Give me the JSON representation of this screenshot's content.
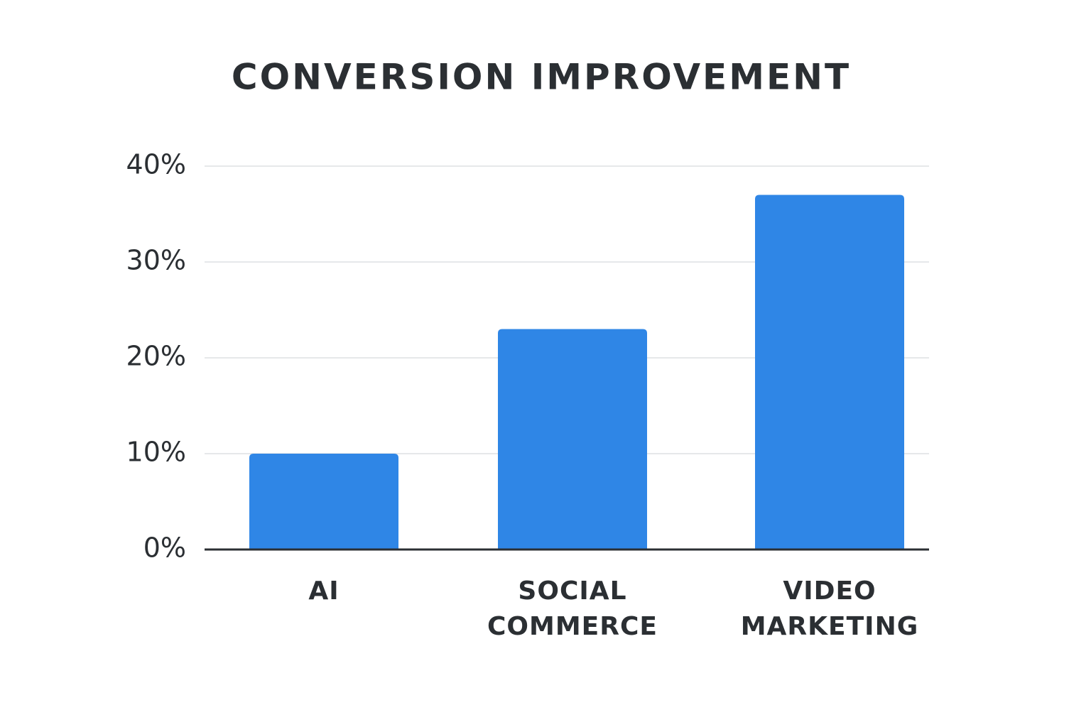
{
  "chart_data": {
    "type": "bar",
    "title": "CONVERSION IMPROVEMENT",
    "categories": [
      "AI",
      "SOCIAL COMMERCE",
      "VIDEO MARKETING"
    ],
    "values": [
      10,
      23,
      37
    ],
    "color": "#2f86e6",
    "ylim": [
      0,
      40
    ],
    "yticks": [
      {
        "value": 0,
        "label": "0%"
      },
      {
        "value": 10,
        "label": "10%"
      },
      {
        "value": 20,
        "label": "20%"
      },
      {
        "value": 30,
        "label": "30%"
      },
      {
        "value": 40,
        "label": "40%"
      }
    ],
    "grid": true
  }
}
